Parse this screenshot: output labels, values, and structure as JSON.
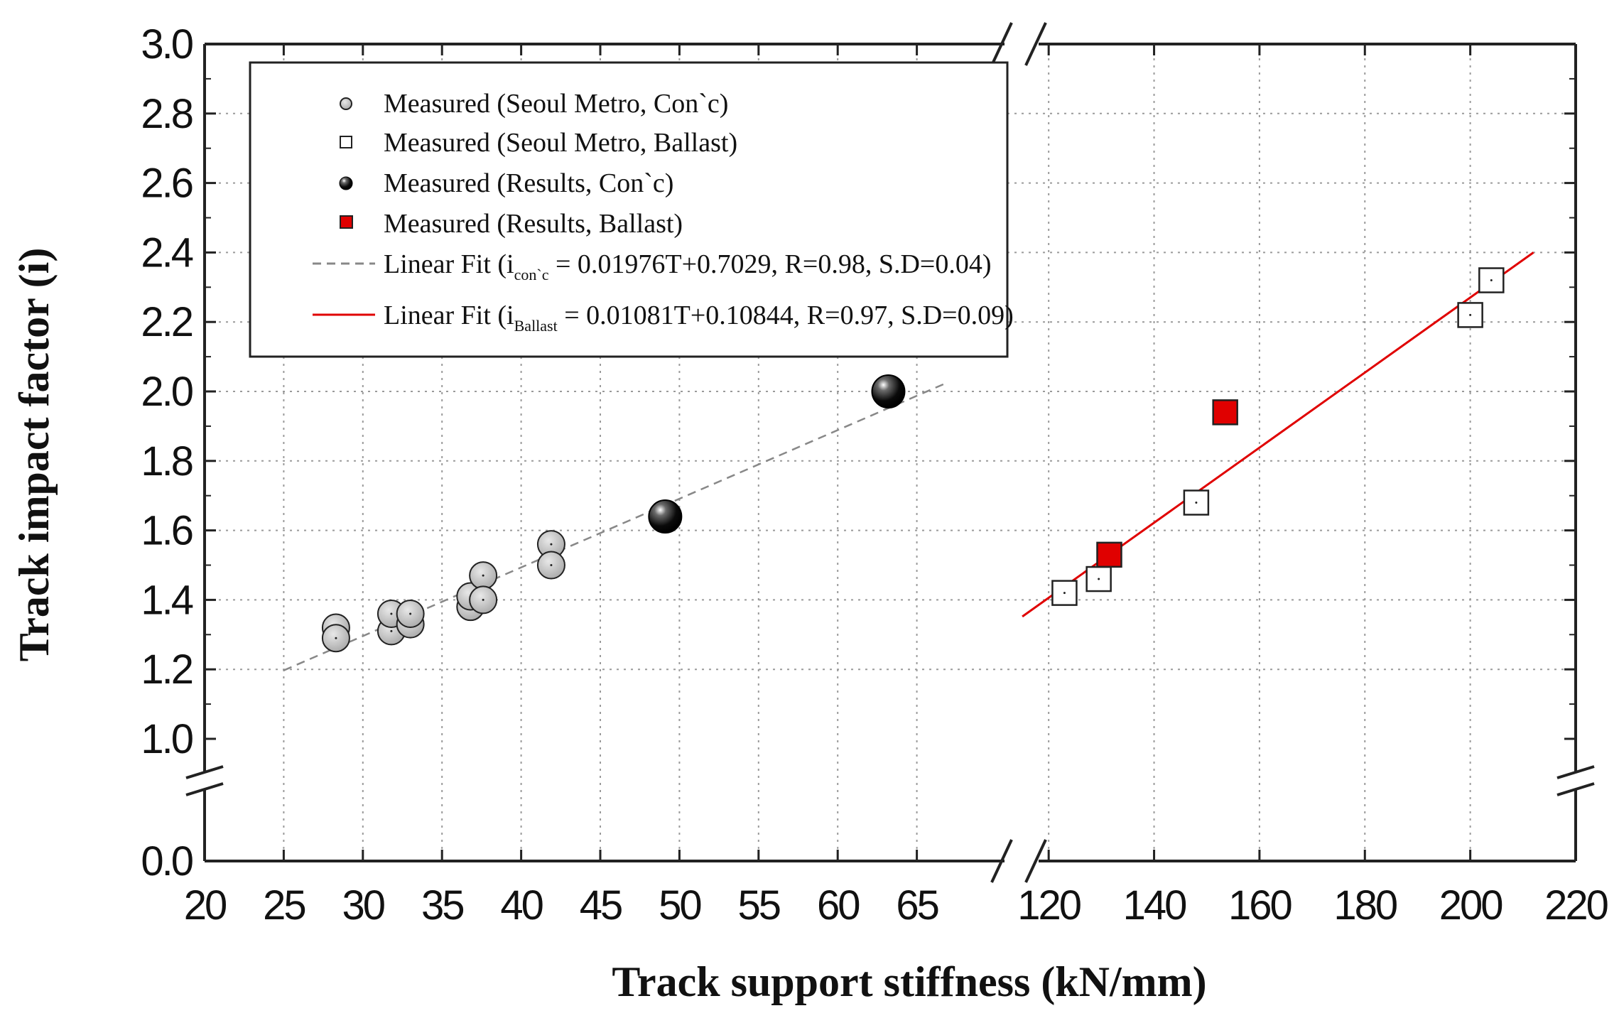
{
  "chart_data": {
    "type": "scatter",
    "title": "",
    "xlabel": "Track support stiffness (kN/mm)",
    "ylabel": "Track impact factor (i)",
    "ylim": [
      0.0,
      3.0
    ],
    "yticks": [
      "0.0",
      "1.0",
      "1.2",
      "1.4",
      "1.6",
      "1.8",
      "2.0",
      "2.2",
      "2.4",
      "2.6",
      "2.8",
      "3.0"
    ],
    "x_segments": [
      {
        "range": [
          20,
          70
        ],
        "ticks": [
          "20",
          "25",
          "30",
          "35",
          "40",
          "45",
          "50",
          "55",
          "60",
          "65"
        ]
      },
      {
        "range": [
          110,
          220
        ],
        "ticks": [
          "120",
          "140",
          "160",
          "180",
          "200",
          "220"
        ]
      }
    ],
    "grid": true,
    "axis_breaks": "x between 70 and 110; y between 0.0 and 1.0",
    "legend_position": "top-left",
    "series": [
      {
        "name": "Measured (Seoul Metro, Con`c)",
        "marker": "circle-gray",
        "color": "#bdbdbd",
        "points": [
          [
            28.3,
            1.32
          ],
          [
            28.3,
            1.29
          ],
          [
            31.8,
            1.31
          ],
          [
            31.8,
            1.36
          ],
          [
            33.0,
            1.33
          ],
          [
            33.0,
            1.36
          ],
          [
            36.8,
            1.38
          ],
          [
            36.8,
            1.41
          ],
          [
            37.6,
            1.47
          ],
          [
            37.6,
            1.4
          ],
          [
            41.9,
            1.56
          ],
          [
            41.9,
            1.5
          ]
        ]
      },
      {
        "name": "Measured (Seoul Metro, Ballast)",
        "marker": "square-open",
        "color": "#ffffff",
        "points": [
          [
            123,
            1.42
          ],
          [
            129.5,
            1.46
          ],
          [
            148,
            1.68
          ],
          [
            200,
            2.22
          ],
          [
            204,
            2.32
          ]
        ]
      },
      {
        "name": "Measured (Results, Con`c)",
        "marker": "circle-black",
        "color": "#111111",
        "points": [
          [
            49.1,
            1.64
          ],
          [
            63.2,
            2.0
          ]
        ]
      },
      {
        "name": "Measured (Results, Ballast)",
        "marker": "square-red",
        "color": "#e00000",
        "points": [
          [
            131.5,
            1.53
          ],
          [
            153.5,
            1.94
          ]
        ]
      }
    ],
    "fits": [
      {
        "label_prefix": "Linear Fit (i",
        "label_sub": "con`c",
        "label_rest": " = 0.01976T+0.7029, R=0.98, S.D=0.04)",
        "style": "dashed",
        "color": "#888888",
        "x_range": [
          25,
          67
        ],
        "y_range": [
          1.197,
          2.027
        ]
      },
      {
        "label_prefix": "Linear Fit (i",
        "label_sub": "Ballast",
        "label_rest": " = 0.01081T+0.10844, R=0.97, S.D=0.09)",
        "style": "solid",
        "color": "#e00000",
        "x_range": [
          115,
          212
        ],
        "y_range": [
          1.352,
          2.4
        ]
      }
    ]
  }
}
